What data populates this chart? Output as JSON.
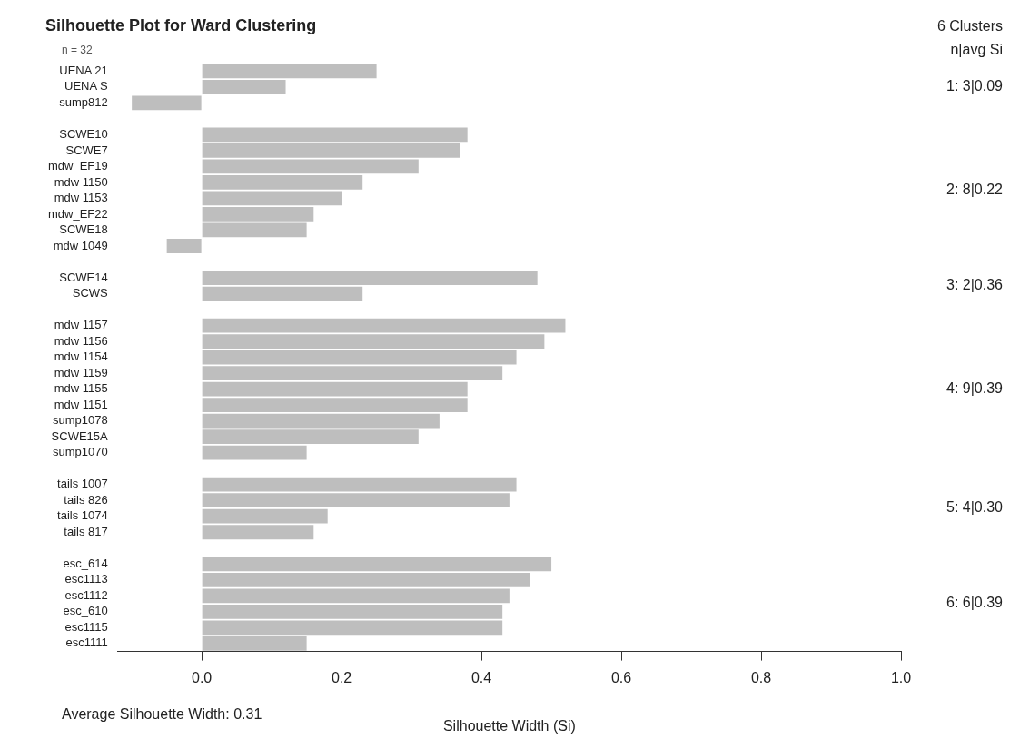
{
  "chart_data": {
    "type": "bar",
    "orientation": "horizontal",
    "title": "Silhouette Plot for Ward Clustering",
    "xlabel": "Silhouette Width (Si)",
    "categories": [
      "UENA 21",
      "UENA S",
      "sump812",
      null,
      "SCWE10",
      "SCWE7",
      "mdw_EF19",
      "mdw 1150",
      "mdw 1153",
      "mdw_EF22",
      "SCWE18",
      "mdw 1049",
      null,
      "SCWE14",
      "SCWS",
      null,
      "mdw 1157",
      "mdw 1156",
      "mdw 1154",
      "mdw 1159",
      "mdw 1155",
      "mdw 1151",
      "sump1078",
      "SCWE15A",
      "sump1070",
      null,
      "tails 1007",
      "tails 826",
      "tails 1074",
      "tails 817",
      null,
      "esc_614",
      "esc1113",
      "esc1112",
      "esc_610",
      "esc1115",
      "esc1111"
    ],
    "values": [
      0.25,
      0.12,
      -0.1,
      null,
      0.38,
      0.37,
      0.31,
      0.23,
      0.2,
      0.16,
      0.15,
      -0.05,
      null,
      0.48,
      0.23,
      null,
      0.52,
      0.49,
      0.45,
      0.43,
      0.38,
      0.38,
      0.34,
      0.31,
      0.15,
      null,
      0.45,
      0.44,
      0.18,
      0.16,
      null,
      0.5,
      0.47,
      0.44,
      0.43,
      0.43,
      0.15
    ],
    "color": "#bebebe",
    "xlim": [
      -0.12,
      1.0
    ],
    "xticks": [
      {
        "value": 0,
        "label": "0.0"
      },
      {
        "value": 0.2,
        "label": "0.2"
      },
      {
        "value": 0.4,
        "label": "0.4"
      },
      {
        "value": 0.6,
        "label": "0.6"
      },
      {
        "value": 0.8,
        "label": "0.8"
      },
      {
        "value": 1,
        "label": "1.0"
      }
    ],
    "grid": false,
    "legend": false,
    "annotations": [
      "n = 32",
      "6 Clusters",
      "n|avg Si",
      "1: 3|0.09",
      "2: 8|0.22",
      "3: 2|0.36",
      "4: 9|0.39",
      "5: 4|0.30",
      "6: 6|0.39",
      "Average Silhouette Width: 0.31"
    ]
  }
}
